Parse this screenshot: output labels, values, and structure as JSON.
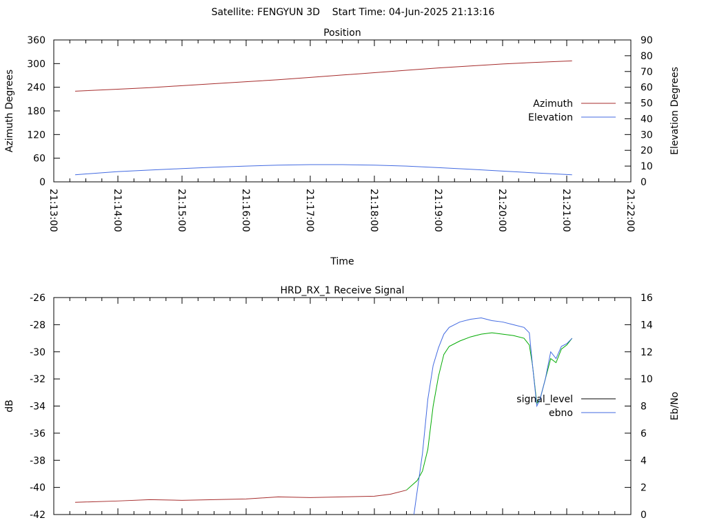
{
  "header": {
    "title": "Satellite: FENGYUN 3D    Start Time: 04-Jun-2025 21:13:16"
  },
  "chart_data": [
    {
      "id": "position",
      "type": "line",
      "title": "Position",
      "xlabel": "Time",
      "ylabel": "Azimuth Degrees",
      "y2label": "Elevation Degrees",
      "xlim": [
        "21:13:00",
        "21:22:00"
      ],
      "ylim": [
        0,
        360
      ],
      "y2lim": [
        0,
        90
      ],
      "x_tick_labels": [
        "21:13:00",
        "21:14:00",
        "21:15:00",
        "21:16:00",
        "21:17:00",
        "21:18:00",
        "21:19:00",
        "21:20:00",
        "21:21:00",
        "21:22:00"
      ],
      "y_tick_labels": [
        "0",
        "60",
        "120",
        "180",
        "240",
        "300",
        "360"
      ],
      "y2_tick_labels": [
        "0",
        "10",
        "20",
        "30",
        "40",
        "50",
        "60",
        "70",
        "80",
        "90"
      ],
      "legend_position": "right",
      "grid": false,
      "x": [
        "21:13:20",
        "21:14:00",
        "21:14:30",
        "21:15:00",
        "21:15:30",
        "21:16:00",
        "21:16:30",
        "21:17:00",
        "21:17:30",
        "21:18:00",
        "21:18:30",
        "21:19:00",
        "21:19:30",
        "21:20:00",
        "21:20:30",
        "21:21:05"
      ],
      "series": [
        {
          "name": "Azimuth",
          "axis": "y",
          "color": "#a52a2a",
          "values": [
            230,
            235,
            239,
            244,
            249,
            254,
            259,
            265,
            271,
            277,
            283,
            289,
            294,
            299,
            303,
            307
          ]
        },
        {
          "name": "Elevation",
          "axis": "y2",
          "color": "#4169e1",
          "values": [
            4.5,
            6.5,
            7.5,
            8.4,
            9.3,
            10.0,
            10.6,
            10.9,
            10.9,
            10.6,
            10.0,
            9.0,
            8.0,
            6.8,
            5.7,
            4.5
          ]
        }
      ]
    },
    {
      "id": "receive-signal",
      "type": "line",
      "title": "HRD_RX_1 Receive Signal",
      "xlabel": "",
      "ylabel": "dB",
      "y2label": "Eb/No",
      "xlim": [
        "21:13:00",
        "21:22:00"
      ],
      "ylim": [
        -42,
        -26
      ],
      "y2lim": [
        0,
        16
      ],
      "y_tick_labels": [
        "-42",
        "-40",
        "-38",
        "-36",
        "-34",
        "-32",
        "-30",
        "-28",
        "-26"
      ],
      "y2_tick_labels": [
        "0",
        "2",
        "4",
        "6",
        "8",
        "10",
        "12",
        "14",
        "16"
      ],
      "legend_position": "right",
      "grid": false,
      "series": [
        {
          "name": "signal_level",
          "axis": "y",
          "color": "#a52a2a",
          "color_high": "#00aa00",
          "x": [
            "21:13:20",
            "21:14:00",
            "21:14:30",
            "21:15:00",
            "21:15:30",
            "21:16:00",
            "21:16:30",
            "21:17:00",
            "21:17:30",
            "21:18:00",
            "21:18:15",
            "21:18:30",
            "21:18:40",
            "21:18:45",
            "21:18:50",
            "21:18:55",
            "21:19:00",
            "21:19:05",
            "21:19:10",
            "21:19:20",
            "21:19:30",
            "21:19:40",
            "21:19:50",
            "21:20:00",
            "21:20:10",
            "21:20:20",
            "21:20:25",
            "21:20:28",
            "21:20:32",
            "21:20:35",
            "21:20:40",
            "21:20:45",
            "21:20:50",
            "21:20:55",
            "21:21:00",
            "21:21:05"
          ],
          "values": [
            -41.1,
            -41.0,
            -40.9,
            -40.95,
            -40.9,
            -40.85,
            -40.7,
            -40.75,
            -40.7,
            -40.65,
            -40.5,
            -40.2,
            -39.5,
            -38.8,
            -37.2,
            -34.0,
            -31.8,
            -30.2,
            -29.6,
            -29.2,
            -28.9,
            -28.7,
            -28.6,
            -28.7,
            -28.8,
            -29.0,
            -29.5,
            -31.0,
            -33.8,
            -33.5,
            -32.0,
            -30.5,
            -30.8,
            -29.8,
            -29.5,
            -29.0
          ]
        },
        {
          "name": "ebno",
          "axis": "y2",
          "color": "#4169e1",
          "x": [
            "21:18:37",
            "21:18:45",
            "21:18:50",
            "21:18:55",
            "21:19:00",
            "21:19:05",
            "21:19:10",
            "21:19:20",
            "21:19:30",
            "21:19:40",
            "21:19:50",
            "21:20:00",
            "21:20:10",
            "21:20:20",
            "21:20:25",
            "21:20:28",
            "21:20:32",
            "21:20:35",
            "21:20:40",
            "21:20:45",
            "21:20:50",
            "21:20:55",
            "21:21:00",
            "21:21:05"
          ],
          "values": [
            0.0,
            4.5,
            8.5,
            11.0,
            12.3,
            13.3,
            13.8,
            14.2,
            14.4,
            14.5,
            14.3,
            14.2,
            14.0,
            13.8,
            13.4,
            11.0,
            8.0,
            8.5,
            10.0,
            12.0,
            11.5,
            12.4,
            12.6,
            13.0
          ]
        }
      ]
    }
  ]
}
